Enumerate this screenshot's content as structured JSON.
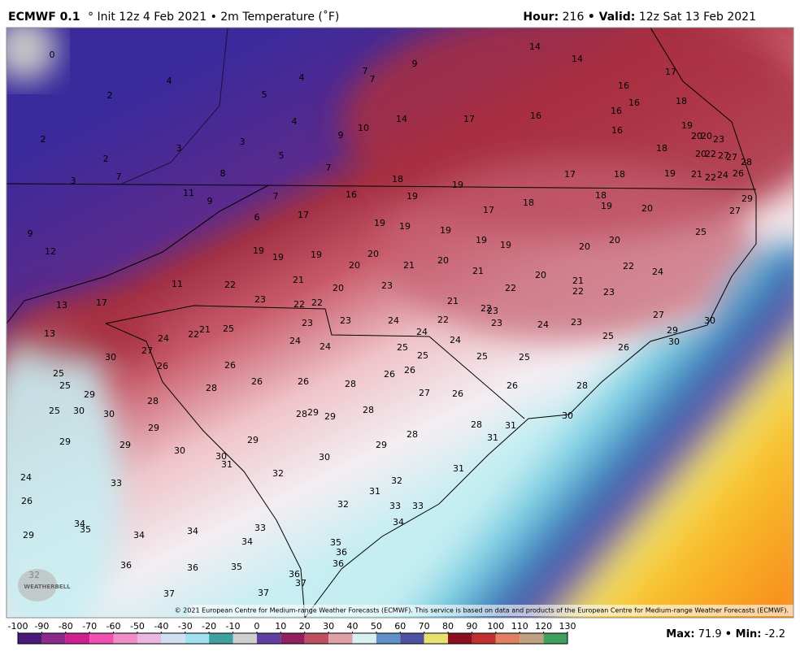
{
  "header": {
    "model": "ECMWF 0.1",
    "init": "° Init 12z 4 Feb 2021 • 2m Temperature (˚F)",
    "hour_label": "Hour:",
    "hour": 216,
    "valid_label": "• Valid:",
    "valid": "12z Sat 13 Feb 2021"
  },
  "map": {
    "credit": "© 2021 European Centre for Medium-range Weather Forecasts (ECMWF). This service is based on data and products of the European Centre for Medium-range Weather Forecasts (ECMWF).",
    "logo": "WEATHERBELL",
    "temperatures": [
      0,
      4,
      4,
      2,
      5,
      7,
      7,
      9,
      14,
      14,
      17,
      16,
      16,
      16,
      18,
      4,
      10,
      9,
      14,
      17,
      16,
      16,
      19,
      20,
      20,
      23,
      18,
      20,
      22,
      27,
      27,
      28,
      2,
      3,
      3,
      5,
      2,
      8,
      7,
      7,
      3,
      18,
      19,
      17,
      18,
      19,
      21,
      22,
      24,
      26,
      11,
      9,
      7,
      16,
      19,
      18,
      18,
      19,
      29,
      17,
      6,
      17,
      20,
      27,
      9,
      19,
      19,
      19,
      25,
      19,
      19,
      20,
      20,
      12,
      19,
      19,
      19,
      20,
      20,
      20,
      21,
      21,
      20,
      22,
      24,
      21,
      22,
      21,
      22,
      11,
      20,
      23,
      22,
      23,
      23,
      22,
      22,
      21,
      13,
      17,
      22,
      23,
      27,
      30,
      23,
      23,
      24,
      22,
      23,
      24,
      23,
      21,
      22,
      25,
      24,
      24,
      24,
      29,
      25,
      13,
      24,
      24,
      26,
      30,
      27,
      30,
      25,
      25,
      25,
      25,
      26,
      26,
      25,
      25,
      26,
      26,
      26,
      26,
      28,
      26,
      28,
      28,
      29,
      27,
      26,
      28,
      25,
      30,
      30,
      28,
      29,
      29,
      28,
      30,
      28,
      31,
      29,
      28,
      31,
      29,
      29,
      29,
      29,
      30,
      30,
      31,
      30,
      31,
      32,
      32,
      24,
      33,
      31,
      26,
      32,
      33,
      33,
      34,
      34,
      35,
      33,
      34,
      34,
      34,
      29,
      35,
      36,
      36,
      36,
      36,
      35,
      36,
      37,
      37,
      37,
      32
    ]
  },
  "legend": {
    "ticks": [
      -100,
      -90,
      -80,
      -70,
      -60,
      -50,
      -40,
      -30,
      -20,
      -10,
      0,
      10,
      20,
      30,
      40,
      50,
      60,
      70,
      80,
      90,
      100,
      110,
      120,
      130
    ],
    "colors": [
      "#4a1a7a",
      "#8a2a8a",
      "#d02090",
      "#f050b0",
      "#f08cc8",
      "#e8b8e0",
      "#d0e0f0",
      "#a0e0f0",
      "#40a0a0",
      "#d0d0d0",
      "#6040a0",
      "#902060",
      "#c05060",
      "#e0a0a8",
      "#d8f0f0",
      "#6090c8",
      "#5050a0",
      "#e8e070",
      "#8a1020",
      "#c03030",
      "#e08060",
      "#c0a080",
      "#40a060"
    ],
    "max_label": "Max:",
    "max": 71.9,
    "min_label": "• Min:",
    "min": -2.2
  }
}
